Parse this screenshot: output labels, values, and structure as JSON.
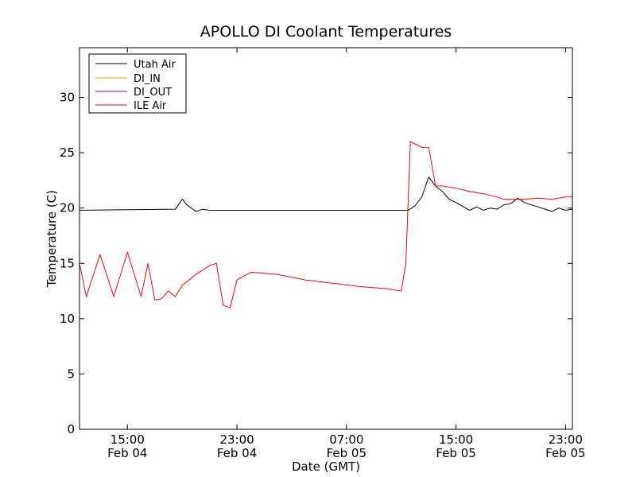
{
  "chart_data": {
    "type": "line",
    "title": "APOLLO DI Coolant Temperatures",
    "xlabel": "Date (GMT)",
    "ylabel": "Temperature (C)",
    "x_unit": "hours",
    "xlim": [
      "Feb 04 11:30",
      "Feb 05 23:30"
    ],
    "ylim": [
      0,
      34.5
    ],
    "grid": false,
    "legend_position": "top-left",
    "y_ticks": [
      0,
      5,
      10,
      15,
      20,
      25,
      30
    ],
    "x_ticks": [
      {
        "time": "15:00",
        "date": "Feb 04"
      },
      {
        "time": "23:00",
        "date": "Feb 04"
      },
      {
        "time": "07:00",
        "date": "Feb 05"
      },
      {
        "time": "15:00",
        "date": "Feb 05"
      },
      {
        "time": "23:00",
        "date": "Feb 05"
      }
    ],
    "series": [
      {
        "name": "Utah Air",
        "color": "#000000",
        "x": [
          "Feb 04 11:30",
          "Feb 04 18:30",
          "Feb 04 19:00",
          "Feb 04 19:20",
          "Feb 04 20:00",
          "Feb 04 20:30",
          "Feb 04 21:00",
          "Feb 05 10:30",
          "Feb 05 11:30",
          "Feb 05 12:00",
          "Feb 05 12:30",
          "Feb 05 13:00",
          "Feb 05 13:30",
          "Feb 05 14:00",
          "Feb 05 14:30",
          "Feb 05 15:00",
          "Feb 05 16:00",
          "Feb 05 16:30",
          "Feb 05 17:00",
          "Feb 05 17:30",
          "Feb 05 18:00",
          "Feb 05 18:30",
          "Feb 05 19:00",
          "Feb 05 19:30",
          "Feb 05 20:00",
          "Feb 05 21:00",
          "Feb 05 22:00",
          "Feb 05 22:30",
          "Feb 05 23:00",
          "Feb 05 23:30"
        ],
        "y": [
          19.8,
          19.9,
          20.8,
          20.3,
          19.7,
          19.9,
          19.8,
          19.8,
          19.8,
          20.2,
          21.0,
          22.8,
          22.0,
          21.5,
          20.8,
          20.5,
          19.8,
          20.1,
          19.8,
          20.0,
          19.9,
          20.3,
          20.4,
          20.9,
          20.5,
          20.1,
          19.7,
          20.0,
          19.8,
          19.9
        ]
      },
      {
        "name": "DI_IN",
        "color": "#e0b000",
        "x": [],
        "y": []
      },
      {
        "name": "DI_OUT",
        "color": "#800080",
        "x": [],
        "y": []
      },
      {
        "name": "ILE Air",
        "color": "#ff0000",
        "x": [
          "Feb 04 11:30",
          "Feb 04 12:00",
          "Feb 04 13:00",
          "Feb 04 14:00",
          "Feb 04 15:00",
          "Feb 04 16:00",
          "Feb 04 16:30",
          "Feb 04 17:00",
          "Feb 04 17:30",
          "Feb 04 18:00",
          "Feb 04 18:30",
          "Feb 04 19:00",
          "Feb 04 20:00",
          "Feb 04 21:00",
          "Feb 04 21:30",
          "Feb 04 22:00",
          "Feb 04 22:30",
          "Feb 04 23:00",
          "Feb 05 00:00",
          "Feb 05 02:00",
          "Feb 05 04:00",
          "Feb 05 06:00",
          "Feb 05 08:00",
          "Feb 05 10:00",
          "Feb 05 11:00",
          "Feb 05 11:20",
          "Feb 05 11:40",
          "Feb 05 12:00",
          "Feb 05 12:30",
          "Feb 05 13:00",
          "Feb 05 13:30",
          "Feb 05 14:00",
          "Feb 05 15:00",
          "Feb 05 16:00",
          "Feb 05 17:00",
          "Feb 05 18:00",
          "Feb 05 18:30",
          "Feb 05 19:00",
          "Feb 05 20:00",
          "Feb 05 21:00",
          "Feb 05 22:00",
          "Feb 05 23:00",
          "Feb 05 23:30"
        ],
        "y": [
          15.0,
          12.0,
          15.8,
          12.0,
          16.0,
          12.0,
          15.0,
          11.7,
          11.8,
          12.5,
          12.0,
          13.0,
          14.0,
          14.8,
          15.0,
          11.2,
          11.0,
          13.5,
          14.2,
          14.0,
          13.5,
          13.2,
          12.9,
          12.7,
          12.5,
          15.0,
          26.0,
          25.8,
          25.5,
          25.5,
          22.0,
          22.0,
          21.8,
          21.5,
          21.3,
          21.0,
          20.8,
          20.8,
          20.8,
          20.9,
          20.8,
          21.0,
          21.0
        ]
      }
    ]
  }
}
